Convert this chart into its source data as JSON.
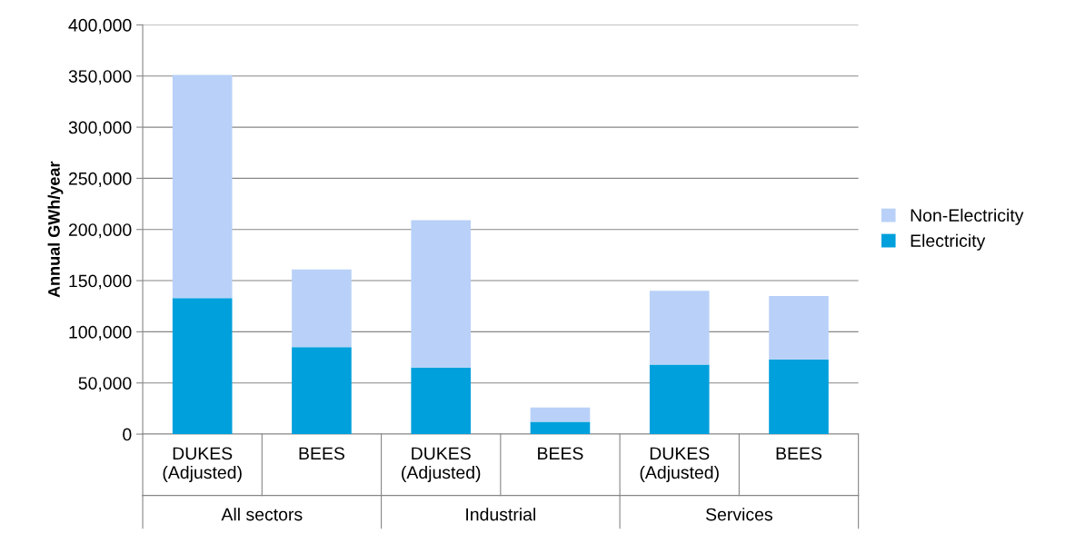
{
  "chart_data": {
    "type": "bar",
    "stacked": true,
    "ylabel": "Annual GWh/year",
    "categories": [
      "DUKES\n(Adjusted)",
      "BEES",
      "DUKES\n(Adjusted)",
      "BEES",
      "DUKES\n(Adjusted)",
      "BEES"
    ],
    "series": [
      {
        "name": "Electricity",
        "color": "#00a0dc",
        "values": [
          133000,
          85000,
          65000,
          12000,
          68000,
          73000
        ]
      },
      {
        "name": "Non-Electricity",
        "color": "#b9d1f8",
        "values": [
          218000,
          76000,
          144000,
          14000,
          72000,
          62000
        ]
      }
    ],
    "annotations": [
      "All sectors",
      "Industrial",
      "Services"
    ],
    "ylim": [
      0,
      400000
    ],
    "yticks": [
      {
        "value": 0,
        "label": "0"
      },
      {
        "value": 50000,
        "label": "50,000"
      },
      {
        "value": 100000,
        "label": "100,000"
      },
      {
        "value": 150000,
        "label": "150,000"
      },
      {
        "value": 200000,
        "label": "200,000"
      },
      {
        "value": 250000,
        "label": "250,000"
      },
      {
        "value": 300000,
        "label": "300,000"
      },
      {
        "value": 350000,
        "label": "350,000"
      },
      {
        "value": 400000,
        "label": "400,000"
      }
    ],
    "grid": "y",
    "legend": "right"
  }
}
